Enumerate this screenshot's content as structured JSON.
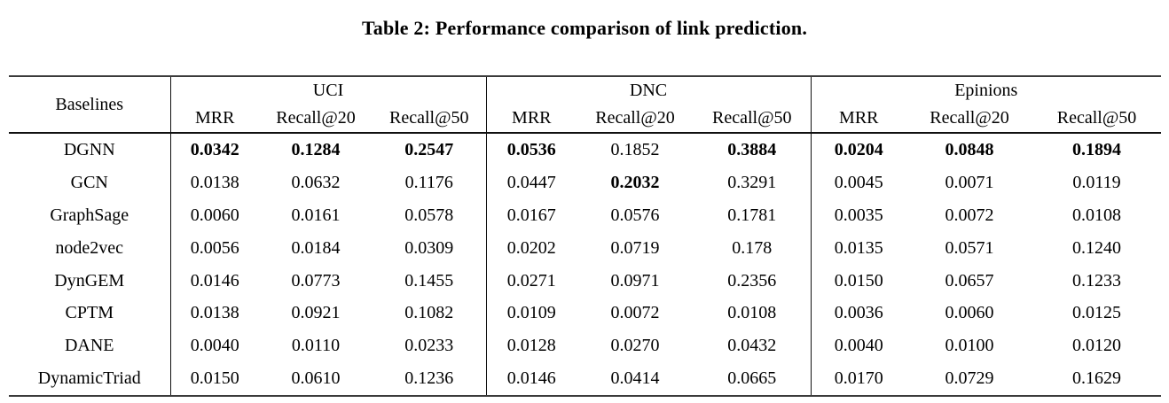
{
  "title": "Table 2: Performance comparison of link prediction.",
  "table": {
    "baselines_header": "Baselines",
    "groups": [
      {
        "label": "UCI",
        "metrics": [
          "MRR",
          "Recall@20",
          "Recall@50"
        ]
      },
      {
        "label": "DNC",
        "metrics": [
          "MRR",
          "Recall@20",
          "Recall@50"
        ]
      },
      {
        "label": "Epinions",
        "metrics": [
          "MRR",
          "Recall@20",
          "Recall@50"
        ]
      }
    ],
    "rows": [
      {
        "label": "DGNN",
        "values": [
          "0.0342",
          "0.1284",
          "0.2547",
          "0.0536",
          "0.1852",
          "0.3884",
          "0.0204",
          "0.0848",
          "0.1894"
        ],
        "bold": [
          true,
          true,
          true,
          true,
          false,
          true,
          true,
          true,
          true
        ]
      },
      {
        "label": "GCN",
        "values": [
          "0.0138",
          "0.0632",
          "0.1176",
          "0.0447",
          "0.2032",
          "0.3291",
          "0.0045",
          "0.0071",
          "0.0119"
        ],
        "bold": [
          false,
          false,
          false,
          false,
          true,
          false,
          false,
          false,
          false
        ]
      },
      {
        "label": "GraphSage",
        "values": [
          "0.0060",
          "0.0161",
          "0.0578",
          "0.0167",
          "0.0576",
          "0.1781",
          "0.0035",
          "0.0072",
          "0.0108"
        ],
        "bold": [
          false,
          false,
          false,
          false,
          false,
          false,
          false,
          false,
          false
        ]
      },
      {
        "label": "node2vec",
        "values": [
          "0.0056",
          "0.0184",
          "0.0309",
          "0.0202",
          "0.0719",
          "0.178",
          "0.0135",
          "0.0571",
          "0.1240"
        ],
        "bold": [
          false,
          false,
          false,
          false,
          false,
          false,
          false,
          false,
          false
        ]
      },
      {
        "label": "DynGEM",
        "values": [
          "0.0146",
          "0.0773",
          "0.1455",
          "0.0271",
          "0.0971",
          "0.2356",
          "0.0150",
          "0.0657",
          "0.1233"
        ],
        "bold": [
          false,
          false,
          false,
          false,
          false,
          false,
          false,
          false,
          false
        ]
      },
      {
        "label": "CPTM",
        "values": [
          "0.0138",
          "0.0921",
          "0.1082",
          "0.0109",
          "0.0072",
          "0.0108",
          "0.0036",
          "0.0060",
          "0.0125"
        ],
        "bold": [
          false,
          false,
          false,
          false,
          false,
          false,
          false,
          false,
          false
        ]
      },
      {
        "label": "DANE",
        "values": [
          "0.0040",
          "0.0110",
          "0.0233",
          "0.0128",
          "0.0270",
          "0.0432",
          "0.0040",
          "0.0100",
          "0.0120"
        ],
        "bold": [
          false,
          false,
          false,
          false,
          false,
          false,
          false,
          false,
          false
        ]
      },
      {
        "label": "DynamicTriad",
        "values": [
          "0.0150",
          "0.0610",
          "0.1236",
          "0.0146",
          "0.0414",
          "0.0665",
          "0.0170",
          "0.0729",
          "0.1629"
        ],
        "bold": [
          false,
          false,
          false,
          false,
          false,
          false,
          false,
          false,
          false
        ]
      }
    ]
  },
  "colors": {
    "text": "#000000",
    "rule_outer": "#3b3b3b",
    "rule_inner": "#101010",
    "background": "#ffffff"
  }
}
